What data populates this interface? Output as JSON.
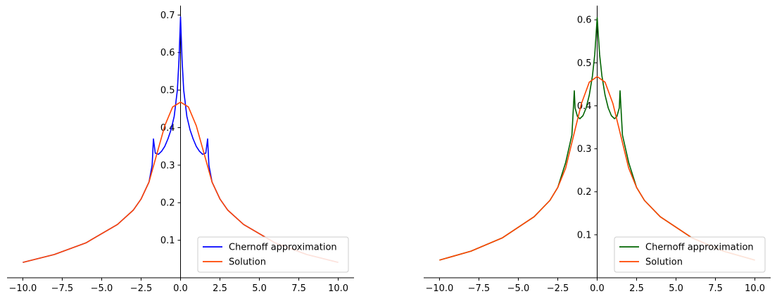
{
  "chart_data": [
    {
      "type": "line",
      "title": "",
      "xlabel": "",
      "ylabel": "",
      "xlim": [
        -11.0,
        11.0
      ],
      "ylim": [
        0.0,
        0.725
      ],
      "xticks": [
        -10.0,
        -7.5,
        -5.0,
        -2.5,
        0.0,
        2.5,
        5.0,
        7.5,
        10.0
      ],
      "xtick_labels": [
        "−10.0",
        "−7.5",
        "−5.0",
        "−2.5",
        "0.0",
        "2.5",
        "5.0",
        "7.5",
        "10.0"
      ],
      "yticks": [
        0.1,
        0.2,
        0.3,
        0.4,
        0.5,
        0.6,
        0.7
      ],
      "ytick_labels": [
        "0.1",
        "0.2",
        "0.3",
        "0.4",
        "0.5",
        "0.6",
        "0.7"
      ],
      "spines": "left and bottom through origin",
      "legend_position": "lower-right",
      "series": [
        {
          "name": "Chernoff approximation",
          "color": "#0000ff",
          "x": [
            -10,
            -8,
            -6,
            -4,
            -3,
            -2.5,
            -2,
            -1.8,
            -1.72,
            -1.6,
            -1.4,
            -1.2,
            -1,
            -0.8,
            -0.6,
            -0.4,
            -0.2,
            -0.1,
            0,
            0.1,
            0.2,
            0.4,
            0.6,
            0.8,
            1,
            1.2,
            1.4,
            1.6,
            1.72,
            1.8,
            2,
            2.5,
            3,
            4,
            6,
            8,
            10
          ],
          "y": [
            0.041,
            0.062,
            0.093,
            0.142,
            0.18,
            0.21,
            0.255,
            0.3,
            0.37,
            0.332,
            0.329,
            0.337,
            0.35,
            0.37,
            0.395,
            0.43,
            0.5,
            0.58,
            0.695,
            0.58,
            0.5,
            0.43,
            0.395,
            0.37,
            0.35,
            0.337,
            0.329,
            0.332,
            0.37,
            0.3,
            0.255,
            0.21,
            0.18,
            0.142,
            0.093,
            0.062,
            0.041
          ]
        },
        {
          "name": "Solution",
          "color": "#ff4500",
          "x": [
            -10,
            -8,
            -6,
            -4,
            -3,
            -2.5,
            -2,
            -1.5,
            -1,
            -0.5,
            0,
            0.5,
            1,
            1.5,
            2,
            2.5,
            3,
            4,
            6,
            8,
            10
          ],
          "y": [
            0.041,
            0.062,
            0.093,
            0.142,
            0.18,
            0.21,
            0.255,
            0.33,
            0.405,
            0.455,
            0.468,
            0.455,
            0.405,
            0.33,
            0.255,
            0.21,
            0.18,
            0.142,
            0.093,
            0.062,
            0.041
          ]
        }
      ]
    },
    {
      "type": "line",
      "title": "",
      "xlabel": "",
      "ylabel": "",
      "xlim": [
        -11.0,
        11.0
      ],
      "ylim": [
        0.0,
        0.633
      ],
      "xticks": [
        -10.0,
        -7.5,
        -5.0,
        -2.5,
        0.0,
        2.5,
        5.0,
        7.5,
        10.0
      ],
      "xtick_labels": [
        "−10.0",
        "−7.5",
        "−5.0",
        "−2.5",
        "0.0",
        "2.5",
        "5.0",
        "7.5",
        "10.0"
      ],
      "yticks": [
        0.1,
        0.2,
        0.3,
        0.4,
        0.5,
        0.6
      ],
      "ytick_labels": [
        "0.1",
        "0.2",
        "0.3",
        "0.4",
        "0.5",
        "0.6"
      ],
      "spines": "left and bottom through origin",
      "legend_position": "lower-right",
      "series": [
        {
          "name": "Chernoff approximation",
          "color": "#006400",
          "x": [
            -10,
            -8,
            -6,
            -4,
            -3,
            -2.5,
            -2,
            -1.6,
            -1.45,
            -1.4,
            -1.25,
            -1.1,
            -0.9,
            -0.7,
            -0.5,
            -0.3,
            -0.15,
            0,
            0.15,
            0.3,
            0.5,
            0.7,
            0.9,
            1.1,
            1.25,
            1.4,
            1.45,
            1.6,
            2,
            2.5,
            3,
            4,
            6,
            8,
            10
          ],
          "y": [
            0.041,
            0.062,
            0.093,
            0.142,
            0.18,
            0.21,
            0.268,
            0.332,
            0.435,
            0.395,
            0.375,
            0.37,
            0.377,
            0.395,
            0.425,
            0.47,
            0.52,
            0.605,
            0.52,
            0.47,
            0.425,
            0.395,
            0.377,
            0.37,
            0.375,
            0.395,
            0.435,
            0.332,
            0.268,
            0.21,
            0.18,
            0.142,
            0.093,
            0.062,
            0.041
          ]
        },
        {
          "name": "Solution",
          "color": "#ff4500",
          "x": [
            -10,
            -8,
            -6,
            -4,
            -3,
            -2.5,
            -2,
            -1.5,
            -1,
            -0.5,
            0,
            0.5,
            1,
            1.5,
            2,
            2.5,
            3,
            4,
            6,
            8,
            10
          ],
          "y": [
            0.041,
            0.062,
            0.093,
            0.142,
            0.18,
            0.21,
            0.255,
            0.33,
            0.405,
            0.455,
            0.468,
            0.455,
            0.405,
            0.33,
            0.255,
            0.21,
            0.18,
            0.142,
            0.093,
            0.062,
            0.041
          ]
        }
      ]
    }
  ]
}
